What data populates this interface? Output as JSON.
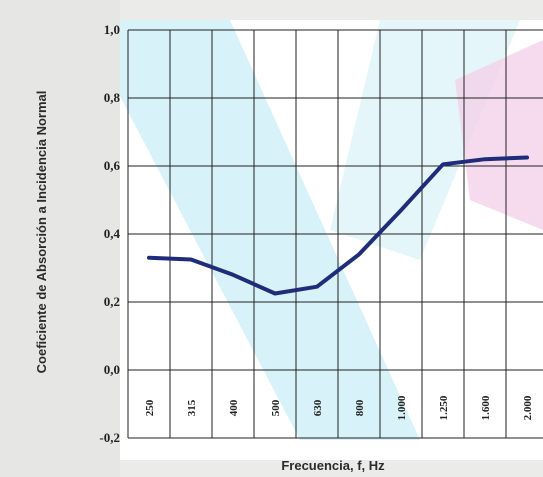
{
  "chart_data": {
    "type": "line",
    "title": "",
    "xlabel": "Frecuencia, f, Hz",
    "ylabel": "Coeficiente de Absorción a Incidencia Normal",
    "x": [
      "250",
      "315",
      "400",
      "500",
      "630",
      "800",
      "1.000",
      "1.250",
      "1.600",
      "2.000"
    ],
    "series": [
      {
        "values": [
          0.33,
          0.325,
          0.28,
          0.225,
          0.245,
          0.34,
          0.47,
          0.605,
          0.62,
          0.625
        ]
      }
    ],
    "y_ticks": [
      "1,0",
      "0,8",
      "0,6",
      "0,4",
      "0,2",
      "0,0",
      "-0,2"
    ],
    "ylim": [
      -0.2,
      1.0
    ],
    "grid": true,
    "line_color": "#1f2c7a"
  }
}
